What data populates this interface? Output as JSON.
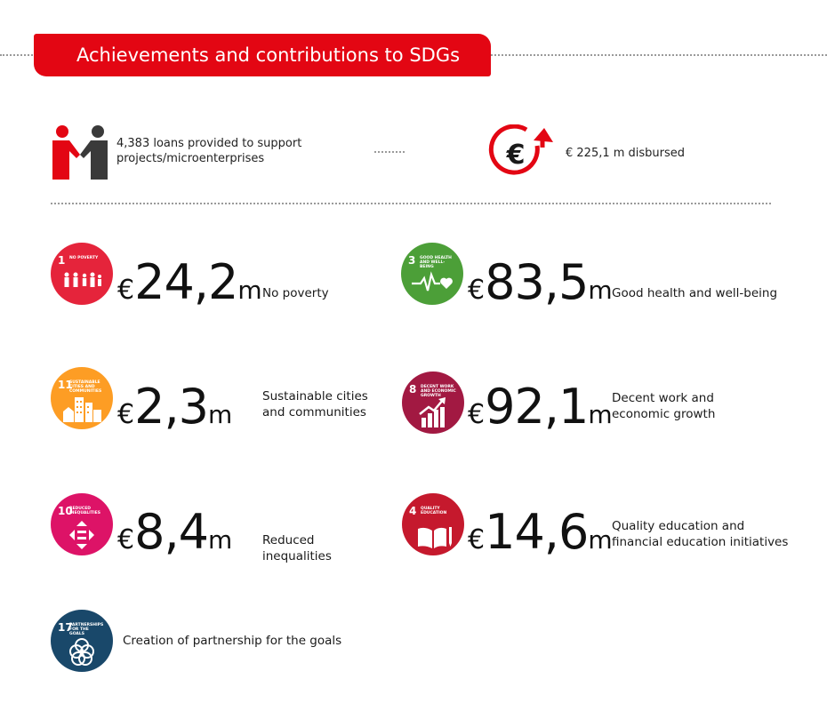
{
  "header": {
    "title": "Achievements and contributions to SDGs"
  },
  "stats": {
    "loans_text": "4,383 loans provided to support projects/microenterprises",
    "disbursed_text": "€ 225,1 m disbursed"
  },
  "currency_symbol": "€",
  "unit_suffix": "m",
  "goals": [
    {
      "num": "1",
      "caption": "No poverty",
      "amount": "24,2",
      "label": "No poverty",
      "color": "#e5243b",
      "icon": "people-family-icon"
    },
    {
      "num": "3",
      "caption": "Good health and well-being",
      "amount": "83,5",
      "label": "Good health and well-being",
      "color": "#4c9f38",
      "icon": "heartbeat-icon"
    },
    {
      "num": "11",
      "caption": "Sustainable cities and communities",
      "amount": "2,3",
      "label": "Sustainable cities and communities",
      "color": "#fd9d24",
      "icon": "city-buildings-icon"
    },
    {
      "num": "8",
      "caption": "Decent work and economic growth",
      "amount": "92,1",
      "label": "Decent work and economic growth",
      "color": "#a21942",
      "icon": "growth-chart-icon"
    },
    {
      "num": "10",
      "caption": "Reduced inequalities",
      "amount": "8,4",
      "label": "Reduced inequalities",
      "color": "#dd1367",
      "icon": "equality-arrows-icon"
    },
    {
      "num": "4",
      "caption": "Quality education",
      "amount": "14,6",
      "label": "Quality education and financial education initiatives",
      "color": "#c5192d",
      "icon": "open-book-icon"
    },
    {
      "num": "17",
      "caption": "Partnerships for the goals",
      "amount": "",
      "label": "Creation of partnership for the goals",
      "color": "#19486a",
      "icon": "partnership-rings-icon"
    }
  ]
}
